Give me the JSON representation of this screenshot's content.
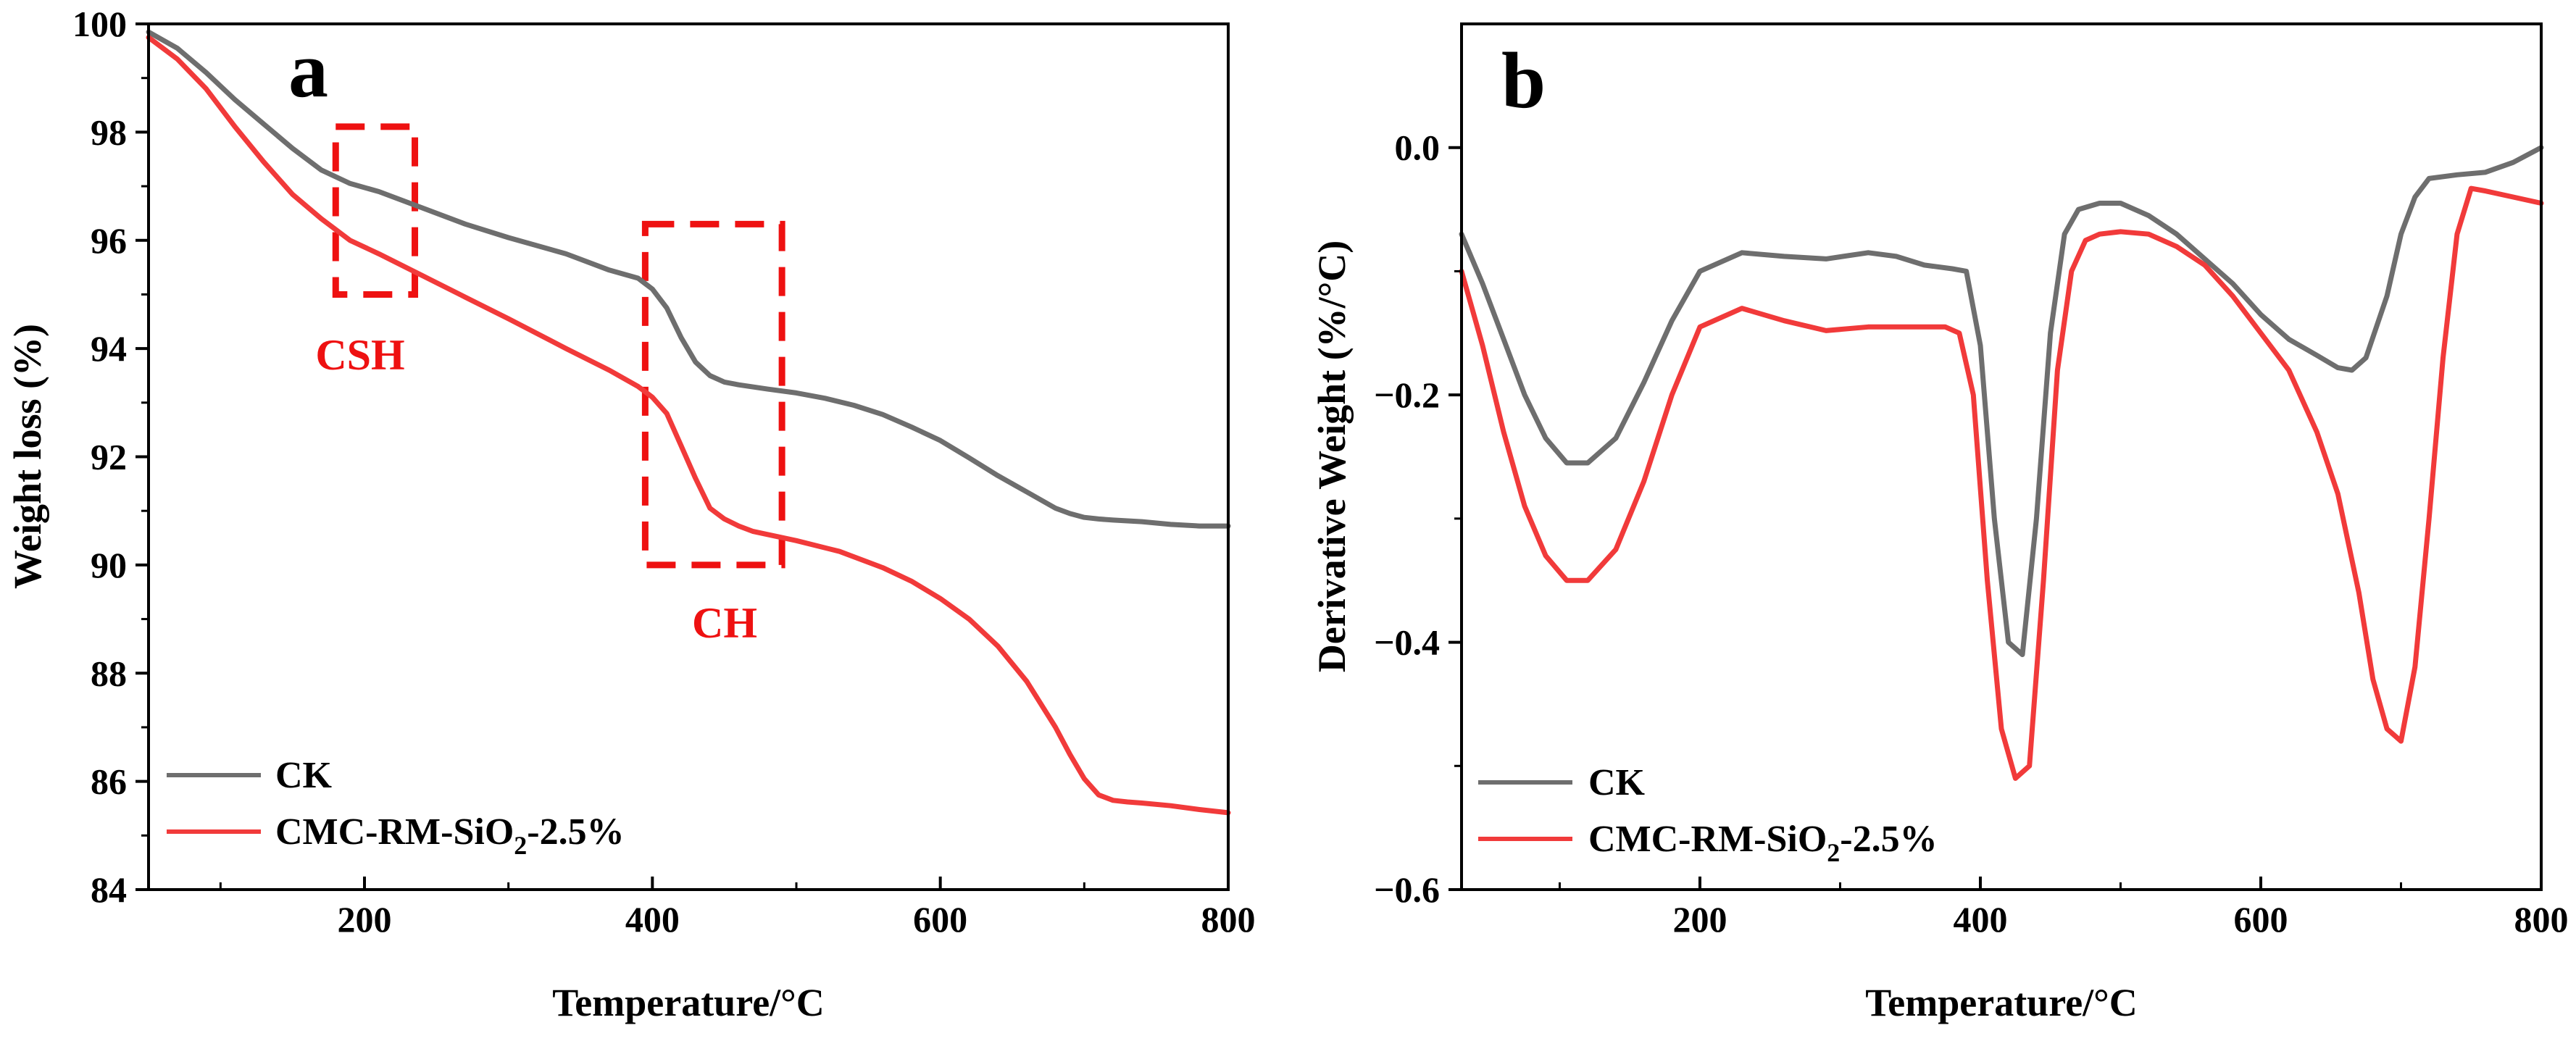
{
  "colors": {
    "ck": "#6e6e6e",
    "cmc": "#f13a3a",
    "annotation": "#ee1111",
    "axis": "#000000"
  },
  "chart_data": [
    {
      "panel": "a",
      "type": "line",
      "xlabel": "Temperature/°C",
      "ylabel": "Weight loss (%)",
      "xlim": [
        50,
        800
      ],
      "ylim": [
        84,
        100
      ],
      "xticks": [
        200,
        400,
        600,
        800
      ],
      "yticks": [
        84,
        86,
        88,
        90,
        92,
        94,
        96,
        98,
        100
      ],
      "legend": {
        "position": "bottom-left",
        "entries": [
          {
            "label": "CK"
          },
          {
            "label_main": "CMC-RM-SiO",
            "label_sub": "2",
            "label_tail": "-2.5%"
          }
        ]
      },
      "annotations": [
        {
          "label": "CSH",
          "x_range": [
            180,
            235
          ],
          "y_range": [
            95,
            98.1
          ]
        },
        {
          "label": "CH",
          "x_range": [
            395,
            490
          ],
          "y_range": [
            90,
            96.3
          ]
        }
      ],
      "series": [
        {
          "name": "CK",
          "x": [
            50,
            70,
            90,
            110,
            130,
            150,
            170,
            190,
            210,
            240,
            270,
            300,
            340,
            370,
            390,
            400,
            410,
            420,
            430,
            440,
            450,
            460,
            480,
            500,
            520,
            540,
            560,
            580,
            600,
            620,
            640,
            660,
            680,
            690,
            700,
            710,
            720,
            740,
            760,
            780,
            800
          ],
          "y": [
            99.85,
            99.55,
            99.1,
            98.6,
            98.15,
            97.7,
            97.3,
            97.05,
            96.9,
            96.6,
            96.3,
            96.05,
            95.75,
            95.45,
            95.3,
            95.1,
            94.75,
            94.2,
            93.75,
            93.5,
            93.38,
            93.33,
            93.25,
            93.18,
            93.08,
            92.95,
            92.78,
            92.55,
            92.3,
            91.98,
            91.65,
            91.35,
            91.05,
            90.95,
            90.88,
            90.85,
            90.83,
            90.8,
            90.75,
            90.72,
            90.72
          ]
        },
        {
          "name": "CMC-RM-SiO2-2.5%",
          "x": [
            50,
            70,
            90,
            110,
            130,
            150,
            170,
            190,
            210,
            240,
            270,
            300,
            340,
            370,
            390,
            400,
            410,
            420,
            430,
            440,
            450,
            460,
            470,
            500,
            530,
            560,
            580,
            600,
            620,
            640,
            660,
            680,
            690,
            700,
            710,
            720,
            730,
            740,
            760,
            780,
            800
          ],
          "y": [
            99.75,
            99.35,
            98.8,
            98.1,
            97.45,
            96.85,
            96.4,
            96.0,
            95.75,
            95.35,
            94.95,
            94.55,
            94.0,
            93.6,
            93.3,
            93.1,
            92.8,
            92.2,
            91.6,
            91.05,
            90.85,
            90.72,
            90.62,
            90.45,
            90.25,
            89.95,
            89.7,
            89.38,
            89.0,
            88.5,
            87.85,
            87.0,
            86.5,
            86.05,
            85.75,
            85.65,
            85.62,
            85.6,
            85.55,
            85.48,
            85.42
          ]
        }
      ]
    },
    {
      "panel": "b",
      "type": "line",
      "xlabel": "Temperature/°C",
      "ylabel": "Derivative Weight (%/°C)",
      "xlim": [
        30,
        800
      ],
      "ylim": [
        -0.6,
        0.1
      ],
      "xticks": [
        200,
        400,
        600,
        800
      ],
      "yticks": [
        -0.6,
        -0.4,
        -0.2,
        0.0
      ],
      "legend": {
        "position": "bottom-left",
        "entries": [
          {
            "label": "CK"
          },
          {
            "label_main": "CMC-RM-SiO",
            "label_sub": "2",
            "label_tail": "-2.5%"
          }
        ]
      },
      "series": [
        {
          "name": "CK",
          "x": [
            30,
            45,
            60,
            75,
            90,
            105,
            120,
            140,
            160,
            180,
            200,
            230,
            260,
            290,
            320,
            340,
            360,
            380,
            390,
            400,
            410,
            420,
            430,
            440,
            450,
            460,
            470,
            485,
            500,
            520,
            540,
            560,
            580,
            600,
            620,
            640,
            655,
            665,
            675,
            690,
            700,
            710,
            720,
            740,
            760,
            780,
            800
          ],
          "y": [
            -0.07,
            -0.11,
            -0.155,
            -0.2,
            -0.235,
            -0.255,
            -0.255,
            -0.235,
            -0.19,
            -0.14,
            -0.1,
            -0.085,
            -0.088,
            -0.09,
            -0.085,
            -0.088,
            -0.095,
            -0.098,
            -0.1,
            -0.16,
            -0.3,
            -0.4,
            -0.41,
            -0.3,
            -0.15,
            -0.07,
            -0.05,
            -0.045,
            -0.045,
            -0.055,
            -0.07,
            -0.09,
            -0.11,
            -0.135,
            -0.155,
            -0.168,
            -0.178,
            -0.18,
            -0.17,
            -0.12,
            -0.07,
            -0.04,
            -0.025,
            -0.022,
            -0.02,
            -0.012,
            0.0
          ]
        },
        {
          "name": "CMC-RM-SiO2-2.5%",
          "x": [
            30,
            45,
            60,
            75,
            90,
            105,
            120,
            140,
            160,
            180,
            200,
            230,
            260,
            290,
            320,
            350,
            375,
            385,
            395,
            405,
            415,
            425,
            435,
            445,
            455,
            465,
            475,
            485,
            500,
            520,
            540,
            560,
            580,
            600,
            620,
            640,
            655,
            670,
            680,
            690,
            700,
            710,
            720,
            730,
            740,
            750,
            760,
            780,
            800
          ],
          "y": [
            -0.1,
            -0.16,
            -0.23,
            -0.29,
            -0.33,
            -0.35,
            -0.35,
            -0.325,
            -0.27,
            -0.2,
            -0.145,
            -0.13,
            -0.14,
            -0.148,
            -0.145,
            -0.145,
            -0.145,
            -0.15,
            -0.2,
            -0.35,
            -0.47,
            -0.51,
            -0.5,
            -0.35,
            -0.18,
            -0.1,
            -0.075,
            -0.07,
            -0.068,
            -0.07,
            -0.08,
            -0.095,
            -0.12,
            -0.15,
            -0.18,
            -0.23,
            -0.28,
            -0.36,
            -0.43,
            -0.47,
            -0.48,
            -0.42,
            -0.3,
            -0.17,
            -0.07,
            -0.033,
            -0.035,
            -0.04,
            -0.045
          ]
        }
      ]
    }
  ]
}
